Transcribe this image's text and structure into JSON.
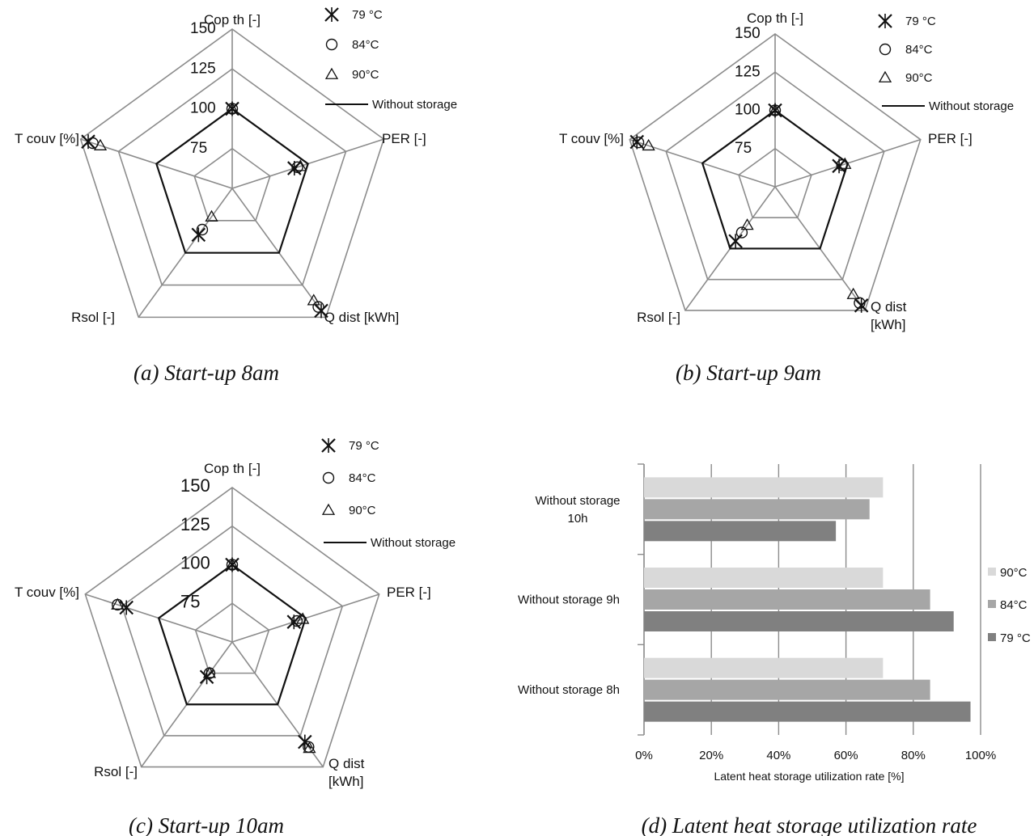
{
  "chart_data": [
    {
      "type": "radar",
      "caption": "(a)  Start-up 8am",
      "axes": [
        "Cop th [-]",
        "PER [-]",
        "Q dist [kWh]",
        "Rsol [-]",
        "T couv [%]"
      ],
      "rlim": [
        50,
        150
      ],
      "ticks": [
        75,
        100,
        125,
        150
      ],
      "legend": [
        "79 °C",
        "84°C",
        "90°C",
        "Without storage"
      ],
      "series": [
        {
          "name": "79 °C",
          "marker": "star",
          "values": [
            100,
            91,
            145,
            86,
            145
          ]
        },
        {
          "name": "84°C",
          "marker": "circle",
          "values": [
            100,
            93,
            142,
            82,
            142
          ]
        },
        {
          "name": "90°C",
          "marker": "triangle",
          "values": [
            100,
            95,
            137,
            72,
            137
          ]
        },
        {
          "name": "Without storage",
          "marker": "line",
          "values": [
            100,
            100,
            100,
            100,
            100
          ]
        }
      ]
    },
    {
      "type": "radar",
      "caption": "(b)  Start-up 9am",
      "axes": [
        "Cop th [-]",
        "PER [-]",
        "Q dist\n[kWh]",
        "Rsol [-]",
        "T couv [%]"
      ],
      "rlim": [
        50,
        150
      ],
      "ticks": [
        75,
        100,
        125,
        150
      ],
      "legend": [
        "79 °C",
        "84°C",
        "90°C",
        "Without storage"
      ],
      "series": [
        {
          "name": "79 °C",
          "marker": "star",
          "values": [
            100,
            94,
            146,
            94,
            145
          ]
        },
        {
          "name": "84°C",
          "marker": "circle",
          "values": [
            100,
            96,
            144,
            87,
            144
          ]
        },
        {
          "name": "90°C",
          "marker": "triangle",
          "values": [
            100,
            98,
            137,
            81,
            137
          ]
        },
        {
          "name": "Without storage",
          "marker": "line",
          "values": [
            100,
            100,
            100,
            100,
            100
          ]
        }
      ]
    },
    {
      "type": "radar",
      "caption": "(c)  Start-up 10am",
      "axes": [
        "Cop th [-]",
        "PER [-]",
        "Q dist\n[kWh]",
        "Rsol [-]",
        "T couv [%]"
      ],
      "rlim": [
        50,
        150
      ],
      "ticks": [
        75,
        100,
        125,
        150
      ],
      "legend": [
        "79 °C",
        "84°C",
        "90°C",
        "Without storage"
      ],
      "series": [
        {
          "name": "79 °C",
          "marker": "star",
          "values": [
            100,
            92,
            130,
            78,
            122
          ]
        },
        {
          "name": "84°C",
          "marker": "circle",
          "values": [
            100,
            94,
            134,
            75,
            128
          ]
        },
        {
          "name": "90°C",
          "marker": "triangle",
          "values": [
            100,
            98,
            135,
            75,
            128
          ]
        },
        {
          "name": "Without storage",
          "marker": "line",
          "values": [
            100,
            100,
            100,
            100,
            100
          ]
        }
      ]
    },
    {
      "type": "bar",
      "orientation": "horizontal",
      "caption": "(d)  Latent heat storage utilization rate",
      "categories": [
        "Without  storage 8h",
        "Without  storage 9h",
        "Without storage 10h"
      ],
      "category_lines": [
        [
          "Without  storage 8h"
        ],
        [
          "Without  storage 9h"
        ],
        [
          "Without storage",
          "10h"
        ]
      ],
      "xlabel": "Latent heat storage utilization rate [%]",
      "xlim": [
        0,
        100
      ],
      "xticks": [
        "0%",
        "20%",
        "40%",
        "60%",
        "80%",
        "100%"
      ],
      "legend": [
        "90°C",
        "84°C",
        "79 °C"
      ],
      "series": [
        {
          "name": "90°C",
          "color": "#d9d9d9",
          "values": [
            71,
            71,
            71
          ]
        },
        {
          "name": "84°C",
          "color": "#a6a6a6",
          "values": [
            85,
            85,
            67
          ]
        },
        {
          "name": "79 °C",
          "color": "#808080",
          "values": [
            97,
            92,
            57
          ]
        }
      ]
    }
  ]
}
